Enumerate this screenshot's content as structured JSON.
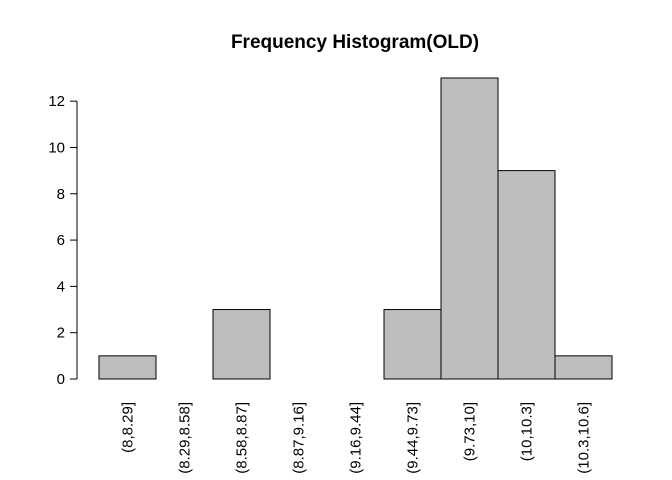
{
  "chart_data": {
    "type": "bar",
    "title": "Frequency Histogram(OLD)",
    "xlabel": "",
    "ylabel": "",
    "categories": [
      "(8,8.29]",
      "(8.29,8.58]",
      "(8.58,8.87]",
      "(8.87,9.16]",
      "(9.16,9.44]",
      "(9.44,9.73]",
      "(9.73,10]",
      "(10,10.3]",
      "(10.3,10.6]"
    ],
    "values": [
      1,
      0,
      3,
      0,
      0,
      3,
      13,
      9,
      1
    ],
    "ylim": [
      0,
      13
    ],
    "yticks": [
      0,
      2,
      4,
      6,
      8,
      10,
      12
    ],
    "grid": false,
    "bar_color": "#bebebe",
    "bar_border_color": "#000000"
  }
}
